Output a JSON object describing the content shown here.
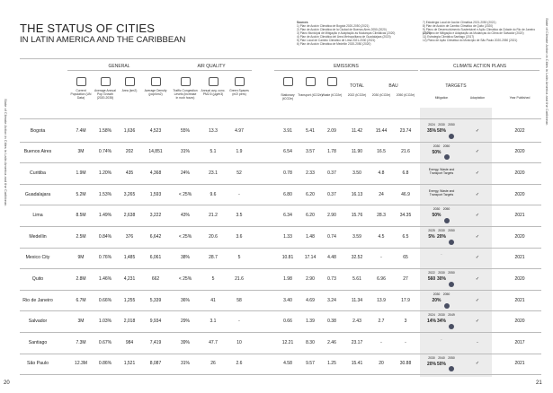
{
  "side_left": "State of Climate Action in Cities in Latin America and the Caribbean",
  "side_right": "State of Climate Action in Cities in Latin America and the Caribbean",
  "title": "THE STATUS OF CITIES",
  "subtitle": "IN LATIN AMERICA AND THE CARIBBEAN",
  "sources": {
    "heading": "Sources",
    "left": [
      "1) Plan de Acción Climática de Bogotá 2020-2050 (2021)",
      "2) Plan de Acción Climática de la Ciudad de Buenos Aires 2050 (2020)",
      "3) Plano Municipal de Mitigação e Adaptação às Mudanças Climáticas (2020)",
      "4) Plan de Acción Climática del Área Metropolitana de Guadalajara (2020)",
      "5) Plan Local de Cambio Climático de Lima 2021-2030 (2021)",
      "6) Plan de Acción Climática de Medellín 2020-2050 (2020)"
    ],
    "right": [
      "7) Estrategia Local de Acción Climática 2021-2050 (2021)",
      "8) Plan de Acción de Cambio Climático de Quito (2020)",
      "9) Plano de Desenvolvimento Sustentável e Ação Climática da Cidade do Rio de Janeiro (2021)",
      "10) Plano de Mitigação e Adaptação às Mudanças do Clima de Salvador (2020)",
      "11) Estrategia Climática Santiago (2017)",
      "12) Plano de Ação Climática do Município de São Paulo 2020-2050 (2021)"
    ]
  },
  "groups": {
    "general": "GENERAL",
    "air_quality": "AIR QUALITY",
    "emissions": "EMISSIONS",
    "climate": "CLIMATE ACTION PLANS"
  },
  "subgroups": {
    "total": "TOTAL",
    "bau": "BAU",
    "targets": "TARGETS"
  },
  "columns": [
    "Current Population (UN Data)",
    "Average Annual Pop Growth (2020-2035)",
    "Area (km2)",
    "Average Density (pop/km2)",
    "Traffic Congestion Levels (increase in rush hours)",
    "Annual avg. conc. PM2.5 (µg/m3)",
    "Green Spaces (m2/ pers)",
    "Stationary (tCO2e)",
    "Transport (tCO2e)",
    "Waste (tCO2e)",
    "2022 (tCO2e)",
    "2030 (tCO2e)",
    "2050 (tCO2e)",
    "Mitigation",
    "Adaptation",
    "Year Published"
  ],
  "rows": [
    {
      "city": "Bogota",
      "values": [
        "7.4M",
        "1.58%",
        "1,636",
        "4,523",
        "55%",
        "13.3",
        "4.97",
        "3.91",
        "5.41",
        "2.09",
        "11.42",
        "15.44",
        "23.74"
      ],
      "mitigation": {
        "years": [
          "2024",
          "2030",
          "2050"
        ],
        "targets": [
          "35%",
          "50%"
        ]
      },
      "adaptation": "✓",
      "year": "2022"
    },
    {
      "city": "Buenos Aires",
      "values": [
        "3M",
        "0.74%",
        "202",
        "14,851",
        "31%",
        "5.1",
        "1.9",
        "6.54",
        "3.57",
        "1.78",
        "11.90",
        "16.5",
        "21.6"
      ],
      "mitigation": {
        "years": [
          "2030",
          "2050"
        ],
        "targets": [
          "50%"
        ]
      },
      "adaptation": "✓",
      "year": "2020"
    },
    {
      "city": "Curitiba",
      "values": [
        "1.9M",
        "1.20%",
        "435",
        "4,368",
        "24%",
        "23.1",
        "52",
        "0.78",
        "2.33",
        "0.37",
        "3.50",
        "4.8",
        "6.8"
      ],
      "mitigation": {
        "text": "Energy, Waste and Transport Targets"
      },
      "adaptation": "✓",
      "year": "2020"
    },
    {
      "city": "Guadalajara",
      "values": [
        "5.2M",
        "1.53%",
        "3,265",
        "1,593",
        "< 25%",
        "9.6",
        "-",
        "6.80",
        "6.20",
        "0.37",
        "16.13",
        "24",
        "46.9"
      ],
      "mitigation": {
        "text": "Energy, Waste and Transport Targets"
      },
      "adaptation": "✓",
      "year": "2020"
    },
    {
      "city": "Lima",
      "values": [
        "8.5M",
        "1.49%",
        "2,638",
        "3,222",
        "43%",
        "21.2",
        "3.5",
        "6.34",
        "6.20",
        "2.90",
        "15.76",
        "28.3",
        "34.35"
      ],
      "mitigation": {
        "years": [
          "2030",
          "2050"
        ],
        "targets": [
          "50%"
        ]
      },
      "adaptation": "✓",
      "year": "2021"
    },
    {
      "city": "Medellin",
      "values": [
        "2.5M",
        "0.84%",
        "376",
        "6,642",
        "< 25%",
        "20.6",
        "3.6",
        "1.33",
        "1.48",
        "0.74",
        "3.59",
        "4.5",
        "6.5"
      ],
      "mitigation": {
        "years": [
          "2025",
          "2030",
          "2050"
        ],
        "targets": [
          "5%",
          "20%"
        ]
      },
      "adaptation": "✓",
      "year": "2020"
    },
    {
      "city": "Mexico City",
      "values": [
        "9M",
        "0.76%",
        "1,485",
        "6,061",
        "38%",
        "28.7",
        "5",
        "10.81",
        "17.14",
        "4.48",
        "32.52",
        "-",
        "65"
      ],
      "mitigation": {
        "text": "-"
      },
      "adaptation": "✓",
      "year": "2021"
    },
    {
      "city": "Quito",
      "values": [
        "2.8M",
        "1.46%",
        "4,231",
        "662",
        "< 25%",
        "5",
        "21.6",
        "1.98",
        "2.90",
        "0.73",
        "5.61",
        "6.96",
        "27"
      ],
      "mitigation": {
        "years": [
          "2022",
          "2030",
          "2050"
        ],
        "targets": [
          "560",
          "30%"
        ]
      },
      "adaptation": "✓",
      "year": "2020"
    },
    {
      "city": "Rio de Janeiro",
      "values": [
        "6.7M",
        "0.66%",
        "1,255",
        "5,339",
        "36%",
        "41",
        "58",
        "3.40",
        "4.69",
        "3.24",
        "11.34",
        "13.9",
        "17.9"
      ],
      "mitigation": {
        "years": [
          "2030",
          "2050"
        ],
        "targets": [
          "20%"
        ]
      },
      "adaptation": "✓",
      "year": "2021"
    },
    {
      "city": "Salvador",
      "values": [
        "3M",
        "1.03%",
        "2,018",
        "9,934",
        "29%",
        "3.1",
        "-",
        "0.66",
        "1.39",
        "0.38",
        "2.43",
        "2.7",
        "3"
      ],
      "mitigation": {
        "years": [
          "2024",
          "2030",
          "2049"
        ],
        "targets": [
          "14%",
          "34%"
        ]
      },
      "adaptation": "✓",
      "year": "2020"
    },
    {
      "city": "Santiago",
      "values": [
        "7.3M",
        "0.67%",
        "984",
        "7,419",
        "39%",
        "47.7",
        "10",
        "12.21",
        "8.30",
        "2.46",
        "23.17",
        "-",
        "-"
      ],
      "mitigation": {
        "text": "-"
      },
      "adaptation": "-",
      "year": "2017"
    },
    {
      "city": "São Paulo",
      "values": [
        "12.3M",
        "0.86%",
        "1,521",
        "8,087",
        "31%",
        "26",
        "2.6",
        "4.58",
        "9.57",
        "1.25",
        "15.41",
        "20",
        "30.88"
      ],
      "mitigation": {
        "years": [
          "2030",
          "2040",
          "2050"
        ],
        "targets": [
          "20%",
          "50%"
        ]
      },
      "adaptation": "✓",
      "year": "2021"
    }
  ],
  "page_left": "20",
  "page_right": "21"
}
